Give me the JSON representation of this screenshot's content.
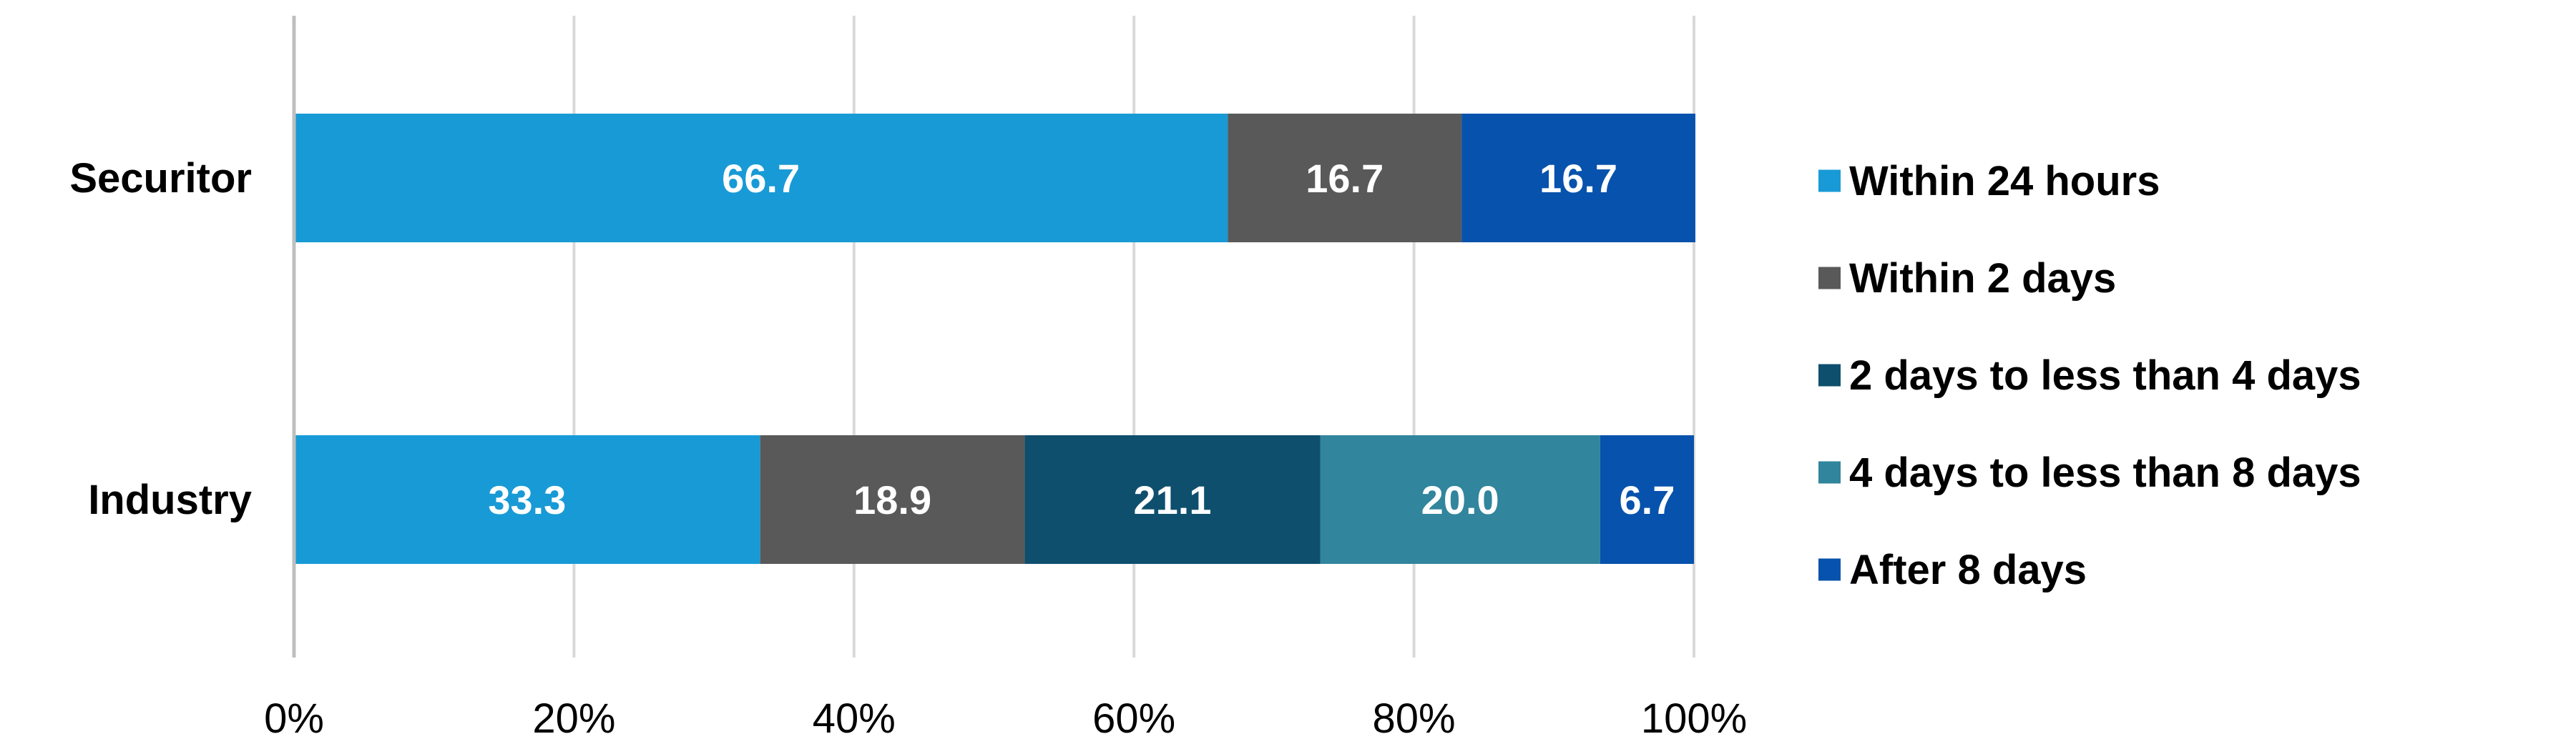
{
  "chart_data": {
    "type": "bar",
    "orientation": "horizontal",
    "stacked": "percent",
    "categories": [
      "Securitor",
      "Industry"
    ],
    "series": [
      {
        "name": "Within 24 hours",
        "color": "#189ad6",
        "values": [
          66.7,
          33.3
        ]
      },
      {
        "name": "Within 2 days",
        "color": "#595959",
        "values": [
          16.7,
          18.9
        ]
      },
      {
        "name": "2 days to less than 4 days",
        "color": "#0f4f6e",
        "values": [
          0,
          21.1
        ]
      },
      {
        "name": "4 days to less than 8 days",
        "color": "#31859c",
        "values": [
          0,
          20.0
        ]
      },
      {
        "name": "After 8 days",
        "color": "#0752ac",
        "values": [
          16.7,
          6.7
        ]
      }
    ],
    "xlim": [
      0,
      100
    ],
    "xticks": [
      "0%",
      "20%",
      "40%",
      "60%",
      "80%",
      "100%"
    ],
    "grid": "vertical",
    "legend_position": "right"
  }
}
